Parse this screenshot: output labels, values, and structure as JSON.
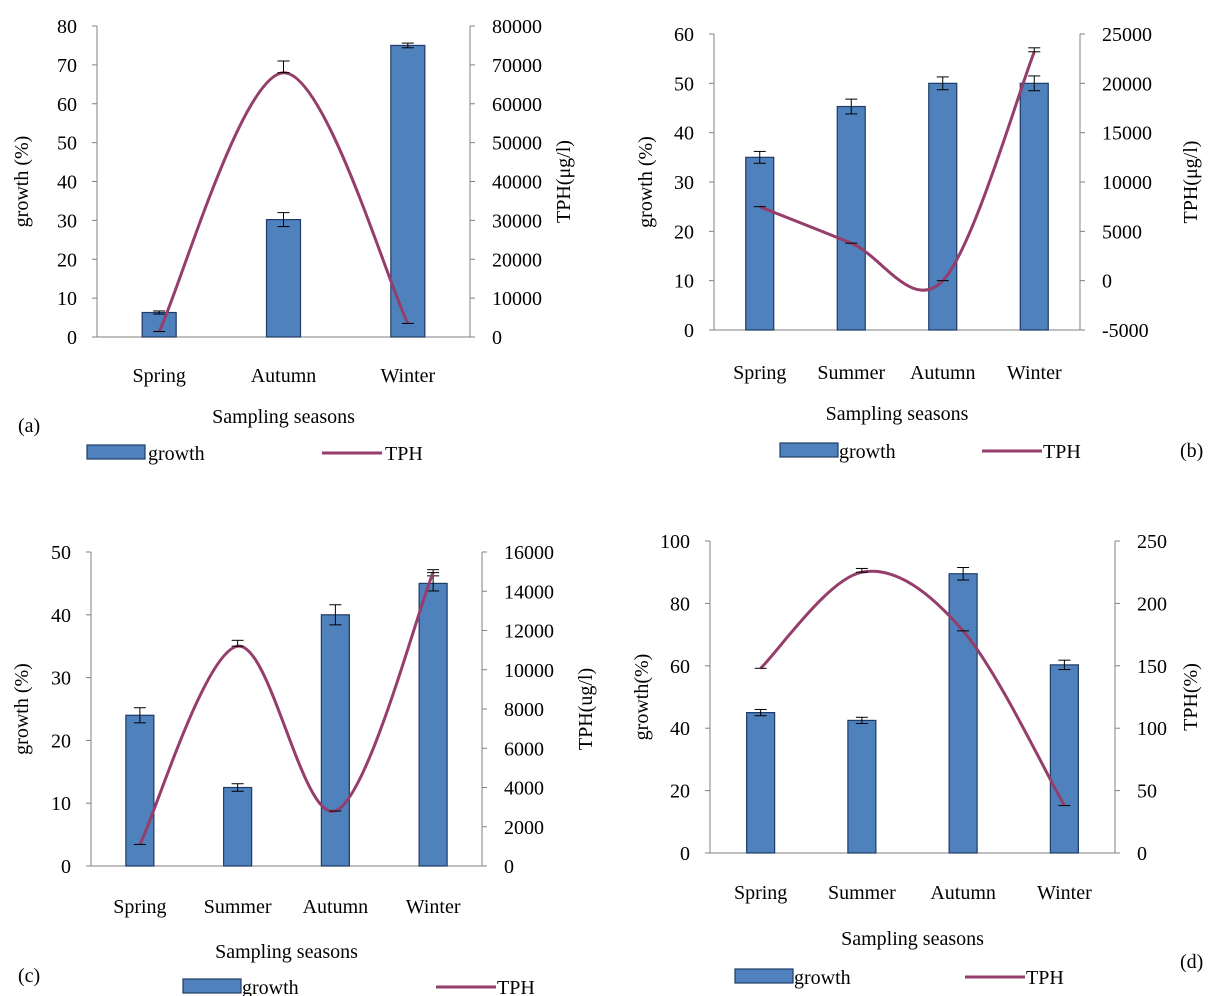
{
  "chart_data": [
    {
      "type": "bar",
      "panel_label": "(a)",
      "categories": [
        "Spring",
        "Autumn",
        "Winter"
      ],
      "series": [
        {
          "name": "growth",
          "type": "bar",
          "axis": "left",
          "values": [
            6.3,
            30.2,
            75
          ],
          "errors": [
            0.4,
            1.8,
            0.6
          ],
          "color": "#4f81bd"
        },
        {
          "name": "TPH",
          "type": "line",
          "axis": "right",
          "values": [
            1400,
            68000,
            3500
          ],
          "errors": [
            0,
            3000,
            0
          ],
          "color": "#953d6b"
        }
      ],
      "title": "",
      "xlabel": "Sampling seasons",
      "ylabel": "growth (%)",
      "y2label": "TPH(μg/l)",
      "ylim": [
        0,
        80
      ],
      "yticks": [
        "0",
        "10",
        "20",
        "30",
        "40",
        "50",
        "60",
        "70",
        "80"
      ],
      "y2lim": [
        0,
        80000
      ],
      "y2ticks": [
        "0",
        "10000",
        "20000",
        "30000",
        "40000",
        "50000",
        "60000",
        "70000",
        "80000"
      ],
      "legend": [
        "growth",
        "TPH"
      ],
      "legend_position": "bottom",
      "grid": false
    },
    {
      "type": "bar",
      "panel_label": "(b)",
      "categories": [
        "Spring",
        "Summer",
        "Autumn",
        "Winter"
      ],
      "series": [
        {
          "name": "growth",
          "type": "bar",
          "axis": "left",
          "values": [
            35,
            45.3,
            50,
            50
          ],
          "errors": [
            1.2,
            1.5,
            1.3,
            1.5
          ],
          "color": "#4f81bd"
        },
        {
          "name": "TPH",
          "type": "line",
          "axis": "right",
          "values": [
            7500,
            3800,
            0,
            23200
          ],
          "errors": [
            0,
            0,
            0,
            400
          ],
          "color": "#953d6b"
        }
      ],
      "title": "",
      "xlabel": "Sampling seasons",
      "ylabel": "growth (%)",
      "y2label": "TPH(μg/l)",
      "ylim": [
        0,
        60
      ],
      "yticks": [
        "0",
        "10",
        "20",
        "30",
        "40",
        "50",
        "60"
      ],
      "y2lim": [
        -5000,
        25000
      ],
      "y2ticks": [
        "-5000",
        "0",
        "5000",
        "10000",
        "15000",
        "20000",
        "25000"
      ],
      "legend": [
        "growth",
        "TPH"
      ],
      "legend_position": "bottom",
      "grid": false
    },
    {
      "type": "bar",
      "panel_label": "(c)",
      "categories": [
        "Spring",
        "Summer",
        "Autumn",
        "Winter"
      ],
      "series": [
        {
          "name": "growth",
          "type": "bar",
          "axis": "left",
          "values": [
            24,
            12.5,
            40,
            45
          ],
          "errors": [
            1.2,
            0.6,
            1.6,
            1.2
          ],
          "color": "#4f81bd"
        },
        {
          "name": "TPH",
          "type": "line",
          "axis": "right",
          "values": [
            1100,
            11200,
            2800,
            14950
          ],
          "errors": [
            0,
            300,
            0,
            150
          ],
          "color": "#953d6b"
        }
      ],
      "title": "",
      "xlabel": "Sampling seasons",
      "ylabel": "growth (%)",
      "y2label": "TPH(ug/l)",
      "ylim": [
        0,
        50
      ],
      "yticks": [
        "0",
        "10",
        "20",
        "30",
        "40",
        "50"
      ],
      "y2lim": [
        0,
        16000
      ],
      "y2ticks": [
        "0",
        "2000",
        "4000",
        "6000",
        "8000",
        "10000",
        "12000",
        "14000",
        "16000"
      ],
      "legend": [
        "growth",
        "TPH"
      ],
      "legend_position": "bottom",
      "grid": false
    },
    {
      "type": "bar",
      "panel_label": "(d)",
      "categories": [
        "Spring",
        "Summer",
        "Autumn",
        "Winter"
      ],
      "series": [
        {
          "name": "growth",
          "type": "bar",
          "axis": "left",
          "values": [
            45,
            42.5,
            89.5,
            60.3
          ],
          "errors": [
            1,
            1,
            2,
            1.5
          ],
          "color": "#4f81bd"
        },
        {
          "name": "TPH",
          "type": "line",
          "axis": "right",
          "values": [
            148,
            225,
            178,
            38
          ],
          "errors": [
            0,
            3,
            0,
            0
          ],
          "color": "#953d6b"
        }
      ],
      "title": "",
      "xlabel": "Sampling seasons",
      "ylabel": "growth(%)",
      "y2label": "TPH(%)",
      "ylim": [
        0,
        100
      ],
      "yticks": [
        "0",
        "20",
        "40",
        "60",
        "80",
        "100"
      ],
      "y2lim": [
        0,
        250
      ],
      "y2ticks": [
        "0",
        "50",
        "100",
        "150",
        "200",
        "250"
      ],
      "legend": [
        "growth",
        "TPH"
      ],
      "legend_position": "bottom",
      "grid": false
    }
  ]
}
